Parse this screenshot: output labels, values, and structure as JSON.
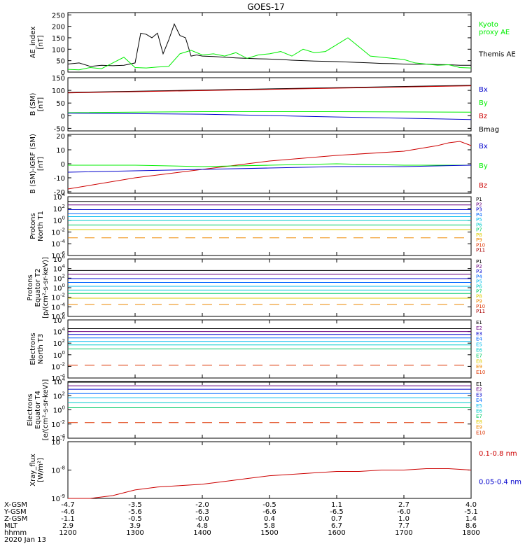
{
  "title": "GOES-17",
  "colors": {
    "black": "#000000",
    "green": "#00ee00",
    "blue": "#0000cc",
    "red": "#cc0000",
    "P1": "#000000",
    "P2": "#6a0080",
    "P3": "#0000cc",
    "P4": "#0066ff",
    "P5": "#00bbee",
    "P6": "#00cccc",
    "P7": "#00cc66",
    "P8": "#ddcc00",
    "P9": "#ee8800",
    "P10": "#dd3300",
    "P11": "#aa0000"
  },
  "chart_data": [
    {
      "type": "line",
      "id": "ae",
      "ylabel": "AE_index\n[nT]",
      "ylim": [
        0,
        260
      ],
      "yticks": [
        0,
        50,
        100,
        150,
        200,
        250
      ],
      "legend": [
        {
          "name": "Kyoto\nproxy AE",
          "color": "green"
        },
        {
          "name": "Themis AE",
          "color": "black"
        }
      ],
      "series": [
        {
          "name": "Themis AE",
          "color": "black",
          "x": [
            1200,
            1210,
            1220,
            1230,
            1240,
            1250,
            1300,
            1305,
            1310,
            1315,
            1320,
            1325,
            1330,
            1335,
            1340,
            1345,
            1350,
            1355,
            1400,
            1410,
            1420,
            1430,
            1440,
            1450,
            1500,
            1510,
            1520,
            1530,
            1540,
            1550,
            1600,
            1610,
            1620,
            1630,
            1640,
            1650,
            1700,
            1710,
            1720,
            1730,
            1740,
            1750,
            1800
          ],
          "y": [
            35,
            40,
            25,
            30,
            28,
            30,
            40,
            170,
            165,
            150,
            170,
            80,
            140,
            210,
            160,
            150,
            70,
            75,
            70,
            68,
            65,
            62,
            60,
            58,
            57,
            55,
            52,
            50,
            48,
            47,
            46,
            44,
            42,
            40,
            38,
            37,
            35,
            34,
            35,
            33,
            32,
            30,
            30
          ]
        },
        {
          "name": "Kyoto proxy AE",
          "color": "green",
          "x": [
            1200,
            1210,
            1220,
            1230,
            1240,
            1250,
            1300,
            1310,
            1320,
            1330,
            1340,
            1350,
            1400,
            1410,
            1420,
            1430,
            1440,
            1450,
            1500,
            1510,
            1520,
            1530,
            1540,
            1550,
            1600,
            1610,
            1620,
            1630,
            1640,
            1650,
            1700,
            1710,
            1720,
            1730,
            1740,
            1750,
            1800
          ],
          "y": [
            12,
            10,
            20,
            15,
            40,
            65,
            20,
            18,
            22,
            25,
            80,
            95,
            75,
            80,
            70,
            85,
            60,
            75,
            80,
            90,
            70,
            100,
            85,
            90,
            120,
            150,
            110,
            70,
            65,
            60,
            55,
            40,
            35,
            30,
            32,
            20,
            18
          ]
        }
      ]
    },
    {
      "type": "line",
      "id": "bsm",
      "ylabel": "B (SM)\n[nT]",
      "ylim": [
        -60,
        150
      ],
      "yticks": [
        -50,
        0,
        50,
        100,
        150
      ],
      "legend": [
        {
          "name": "Bx",
          "color": "blue"
        },
        {
          "name": "By",
          "color": "green"
        },
        {
          "name": "Bz",
          "color": "red"
        },
        {
          "name": "Bmag",
          "color": "black"
        }
      ],
      "series": [
        {
          "name": "Bmag",
          "color": "black",
          "x": [
            1200,
            1800
          ],
          "y": [
            92,
            120
          ]
        },
        {
          "name": "Bz",
          "color": "red",
          "x": [
            1200,
            1800
          ],
          "y": [
            90,
            118
          ]
        },
        {
          "name": "By",
          "color": "green",
          "x": [
            1200,
            1400,
            1600,
            1800
          ],
          "y": [
            12,
            16,
            16,
            14
          ]
        },
        {
          "name": "Bx",
          "color": "blue",
          "x": [
            1200,
            1400,
            1600,
            1800
          ],
          "y": [
            10,
            6,
            -5,
            -15
          ]
        }
      ]
    },
    {
      "type": "line",
      "id": "bigrf",
      "ylabel": "B (SM)-IGRF (SM)\n[nT]",
      "ylim": [
        -21,
        21
      ],
      "yticks": [
        -20,
        -10,
        0,
        10,
        20
      ],
      "legend": [
        {
          "name": "Bx",
          "color": "blue"
        },
        {
          "name": "By",
          "color": "green"
        },
        {
          "name": "Bz",
          "color": "red"
        }
      ],
      "series": [
        {
          "name": "Bz",
          "color": "red",
          "x": [
            1200,
            1300,
            1400,
            1500,
            1600,
            1700,
            1730,
            1740,
            1750,
            1800
          ],
          "y": [
            -18,
            -10,
            -4,
            2,
            6,
            9,
            13,
            15,
            16,
            13
          ]
        },
        {
          "name": "By",
          "color": "green",
          "x": [
            1200,
            1300,
            1400,
            1500,
            1600,
            1700,
            1800
          ],
          "y": [
            -1,
            -1,
            -2,
            -1,
            0,
            -1,
            -1
          ]
        },
        {
          "name": "Bx",
          "color": "blue",
          "x": [
            1200,
            1300,
            1400,
            1500,
            1600,
            1700,
            1800
          ],
          "y": [
            -6,
            -5,
            -4,
            -3,
            -2,
            -2,
            -1
          ]
        }
      ]
    },
    {
      "type": "line",
      "id": "pnorth",
      "scale": "log",
      "ylabel": "Protons\nNorth T1",
      "ylim_exp": [
        -6,
        4
      ],
      "yticks_exp": [
        -6,
        -4,
        -2,
        0,
        2,
        4
      ],
      "legend_small": [
        "P1",
        "P2",
        "P3",
        "P4",
        "P5",
        "P6",
        "P7",
        "P8",
        "P9",
        "P10",
        "P11"
      ],
      "levels": [
        3.2,
        2.6,
        1.8,
        1.1,
        0.6,
        0.0,
        -0.8,
        -1.6,
        -3.0,
        null,
        null
      ],
      "dashed": [
        false,
        false,
        false,
        false,
        false,
        false,
        false,
        false,
        true,
        false,
        false
      ]
    },
    {
      "type": "line",
      "id": "pequator",
      "scale": "log",
      "ylabel": "Protons\nEquator T2\n[p/(cm²-s-sr-keV)]",
      "ylim_exp": [
        -6,
        6
      ],
      "yticks_exp": [
        -6,
        -4,
        -2,
        0,
        2,
        4,
        6
      ],
      "legend_small": [
        "P1",
        "P2",
        "P3",
        "P4",
        "P5",
        "P6",
        "P7",
        "P8",
        "P9",
        "P10",
        "P11"
      ],
      "levels": [
        3.6,
        2.8,
        1.9,
        1.1,
        0.3,
        -0.5,
        -1.2,
        -2.2,
        -3.5,
        null,
        null
      ],
      "dashed": [
        false,
        false,
        false,
        false,
        false,
        false,
        false,
        false,
        true,
        false,
        false
      ]
    },
    {
      "type": "line",
      "id": "enorth",
      "scale": "log",
      "ylabel": "Electrons\nNorth T3",
      "ylim_exp": [
        -4,
        6
      ],
      "yticks_exp": [
        -4,
        -2,
        0,
        2,
        4,
        6
      ],
      "legend_small": [
        "E1",
        "E2",
        "E3",
        "E4",
        "E5",
        "E6",
        "E7",
        "E8",
        "E9",
        "E10"
      ],
      "levels": [
        4.5,
        4.0,
        3.5,
        2.9,
        2.3,
        1.7,
        1.0,
        null,
        null,
        -1.8
      ],
      "dashed": [
        false,
        false,
        false,
        false,
        false,
        false,
        false,
        false,
        false,
        true
      ]
    },
    {
      "type": "line",
      "id": "eequator",
      "scale": "log",
      "ylabel": "Electrons\nEquator T4\n[e/(cm²-s-sr-keV)]",
      "ylim_exp": [
        -4,
        4
      ],
      "yticks_exp": [
        -4,
        -2,
        0,
        2,
        4
      ],
      "legend_small": [
        "E1",
        "E2",
        "E3",
        "E4",
        "E5",
        "E6",
        "E7",
        "E8",
        "E9",
        "E10"
      ],
      "levels": [
        3.9,
        3.4,
        2.9,
        2.3,
        1.7,
        1.0,
        0.3,
        null,
        null,
        -1.8
      ],
      "dashed": [
        false,
        false,
        false,
        false,
        false,
        false,
        false,
        false,
        false,
        true
      ]
    },
    {
      "type": "line",
      "id": "xray",
      "scale": "log",
      "ylabel": "Xray_flux\n[W/m²]",
      "ylim_exp": [
        -9,
        -7
      ],
      "yticks_exp": [
        -9,
        -8,
        -7
      ],
      "legend": [
        {
          "name": "0.1-0.8 nm",
          "color": "red"
        },
        {
          "name": "0.05-0.4 nm",
          "color": "blue"
        }
      ],
      "series": [
        {
          "name": "0.1-0.8 nm",
          "color": "red",
          "x": [
            1200,
            1220,
            1240,
            1300,
            1320,
            1340,
            1400,
            1420,
            1440,
            1500,
            1520,
            1540,
            1600,
            1620,
            1640,
            1700,
            1720,
            1740,
            1800
          ],
          "y_exp": [
            -9.1,
            -9.0,
            -8.9,
            -8.7,
            -8.6,
            -8.55,
            -8.5,
            -8.4,
            -8.3,
            -8.2,
            -8.15,
            -8.1,
            -8.05,
            -8.05,
            -8.0,
            -8.0,
            -7.95,
            -7.95,
            -8.0
          ]
        }
      ]
    }
  ],
  "xaxis": {
    "range": [
      1200,
      1800
    ],
    "tick_positions": [
      1200,
      1300,
      1400,
      1500,
      1600,
      1700,
      1800
    ],
    "rows": [
      {
        "label": "X-GSM",
        "values": [
          "-4.7",
          "-3.5",
          "-2.0",
          "-0.5",
          "1.1",
          "2.7",
          "4.0"
        ]
      },
      {
        "label": "Y-GSM",
        "values": [
          "-4.6",
          "-5.6",
          "-6.3",
          "-6.6",
          "-6.5",
          "-6.0",
          "-5.1"
        ]
      },
      {
        "label": "Z-GSM",
        "values": [
          "-1.1",
          "-0.5",
          "-0.0",
          "0.4",
          "0.7",
          "1.0",
          "1.4"
        ]
      },
      {
        "label": "MLT",
        "values": [
          "2.9",
          "3.9",
          "4.8",
          "5.8",
          "6.7",
          "7.7",
          "8.6"
        ]
      },
      {
        "label": "hhmm",
        "values": [
          "1200",
          "1300",
          "1400",
          "1500",
          "1600",
          "1700",
          "1800"
        ]
      }
    ],
    "date": "2020 Jan 13"
  }
}
